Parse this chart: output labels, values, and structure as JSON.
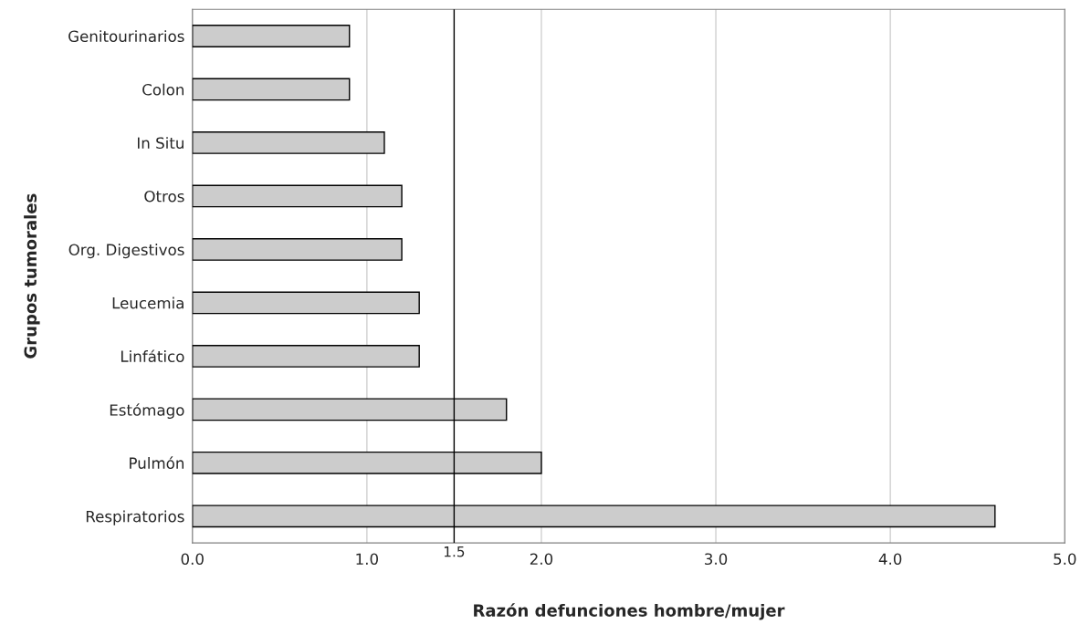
{
  "chart_data": {
    "type": "bar",
    "orientation": "horizontal",
    "xlabel": "Razón defunciones hombre/mujer",
    "ylabel": "Grupos tumorales",
    "categories": [
      "Genitourinarios",
      "Colon",
      "In Situ",
      "Otros",
      "Org. Digestivos",
      "Leucemia",
      "Linfático",
      "Estómago",
      "Pulmón",
      "Respiratorios"
    ],
    "values": [
      0.9,
      0.9,
      1.1,
      1.2,
      1.2,
      1.3,
      1.3,
      1.8,
      2.0,
      4.6
    ],
    "color": "#cccccc",
    "xlim": [
      0,
      5
    ],
    "xticks": [
      {
        "value": 0,
        "label": "0.0"
      },
      {
        "value": 1,
        "label": "1.0"
      },
      {
        "value": 2,
        "label": "2.0"
      },
      {
        "value": 3,
        "label": "3.0"
      },
      {
        "value": 4,
        "label": "4.0"
      },
      {
        "value": 5,
        "label": "5.0"
      }
    ],
    "grid": "x",
    "ref_lines": [
      {
        "axis": "x",
        "value": 1.5,
        "label": "1.5",
        "color": "#000000"
      }
    ]
  }
}
